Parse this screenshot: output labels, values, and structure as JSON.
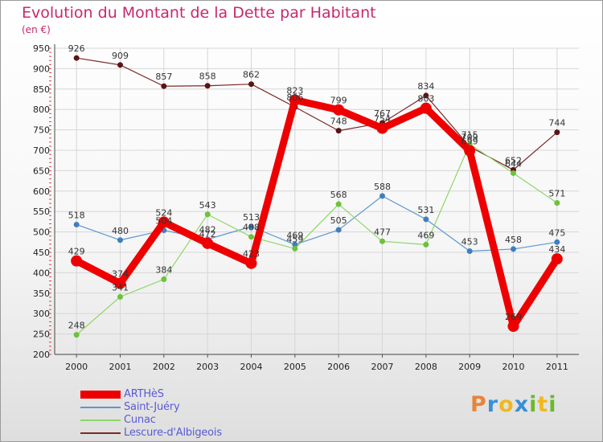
{
  "title": "Evolution du Montant de la Dette par Habitant",
  "subtitle": "(en €)",
  "logo": {
    "letters": [
      "P",
      "r",
      "o",
      "x",
      "i",
      "t",
      "i"
    ],
    "colors": [
      "#e8843c",
      "#3a8fd6",
      "#f0b820",
      "#3a8fd6",
      "#6cb830",
      "#f0b820",
      "#6cb830"
    ]
  },
  "chart_data": {
    "type": "line",
    "x": [
      "2000",
      "2001",
      "2002",
      "2003",
      "2004",
      "2005",
      "2006",
      "2007",
      "2008",
      "2009",
      "2010",
      "2011"
    ],
    "y_ticks": [
      "200",
      "250",
      "300",
      "350",
      "400",
      "450",
      "500",
      "550",
      "600",
      "650",
      "700",
      "750",
      "800",
      "850",
      "900",
      "950"
    ],
    "ylim": [
      200,
      950
    ],
    "grid": true,
    "legend_position": "bottom-left",
    "series": [
      {
        "name": "Lescure-d'Albigeois",
        "color": "#7a2a2a",
        "values": [
          926,
          909,
          857,
          858,
          862,
          806,
          748,
          767,
          834,
          709,
          652,
          744
        ],
        "labels": [
          "926",
          "909",
          "857",
          "858",
          "862",
          "806",
          "748",
          "767",
          "834",
          "709",
          "652",
          "744"
        ]
      },
      {
        "name": "Saint-Juéry",
        "color": "#5c97cc",
        "values": [
          518,
          480,
          504,
          482,
          513,
          469,
          505,
          588,
          531,
          453,
          458,
          475
        ],
        "labels": [
          "518",
          "480",
          "504",
          "482",
          "513",
          "469",
          "505",
          "588",
          "531",
          "453",
          "458",
          "475"
        ]
      },
      {
        "name": "Cunac",
        "color": "#8fd66a",
        "values": [
          248,
          341,
          384,
          543,
          488,
          459,
          568,
          477,
          469,
          715,
          644,
          571
        ],
        "labels": [
          "248",
          "341",
          "384",
          "543",
          "488",
          "459",
          "568",
          "477",
          "469",
          "715",
          "644",
          "571"
        ]
      },
      {
        "name": "ARTHèS",
        "color": "#ee0000",
        "values": [
          429,
          374,
          524,
          472,
          423,
          823,
          799,
          754,
          803,
          699,
          269,
          434
        ],
        "labels": [
          "429",
          "374",
          "524",
          "472",
          "423",
          "823",
          "799",
          "754",
          "803",
          "699",
          "269",
          "434"
        ]
      }
    ]
  }
}
